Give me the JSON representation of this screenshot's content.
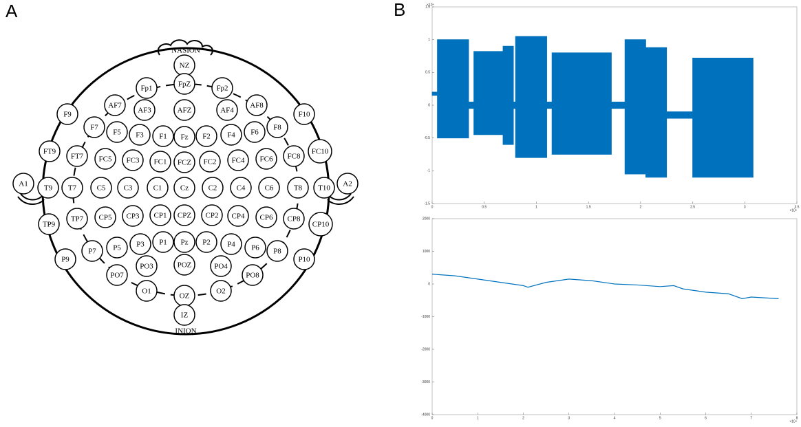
{
  "panel_labels": [
    "A",
    "B"
  ],
  "head": {
    "nasion": "NASION",
    "inion": "INION",
    "electrodes": [
      "NZ",
      "Fp1",
      "FpZ",
      "Fp2",
      "AF7",
      "AF3",
      "AFZ",
      "AF4",
      "AF8",
      "F9",
      "F10",
      "F7",
      "F5",
      "F3",
      "F1",
      "Fz",
      "F2",
      "F4",
      "F6",
      "F8",
      "FT9",
      "FT7",
      "FC5",
      "FC3",
      "FC1",
      "FCZ",
      "FC2",
      "FC4",
      "FC6",
      "FC8",
      "FC10",
      "A1",
      "T9",
      "T7",
      "C5",
      "C3",
      "C1",
      "Cz",
      "C2",
      "C4",
      "C6",
      "T8",
      "T10",
      "A2",
      "TP9",
      "TP7",
      "CP5",
      "CP3",
      "CP1",
      "CPZ",
      "CP2",
      "CP4",
      "CP6",
      "CP8",
      "CP10",
      "P9",
      "P7",
      "P5",
      "P3",
      "P1",
      "Pz",
      "P2",
      "P4",
      "P6",
      "P8",
      "P10",
      "PO7",
      "PO3",
      "POZ",
      "PO4",
      "PO8",
      "O1",
      "OZ",
      "O2",
      "IZ"
    ]
  },
  "chart_data": [
    {
      "type": "band",
      "color": "#0072bd",
      "x": [
        0,
        0.05,
        0.05,
        0.35,
        0.35,
        0.4,
        0.4,
        0.68,
        0.68,
        0.78,
        0.78,
        0.8,
        0.8,
        1.1,
        1.1,
        1.15,
        1.15,
        1.72,
        1.72,
        1.85,
        1.85,
        2.05,
        2.05,
        2.25,
        2.25,
        2.5,
        2.5,
        3.08,
        3.08
      ],
      "upper": [
        0.2,
        0.2,
        1.0,
        1.0,
        0.05,
        0.05,
        0.82,
        0.82,
        0.9,
        0.9,
        0.05,
        0.05,
        1.05,
        1.05,
        0.05,
        0.05,
        0.8,
        0.8,
        0.05,
        0.05,
        1.0,
        1.0,
        0.88,
        0.88,
        -0.1,
        -0.1,
        0.72,
        0.72,
        -0.15
      ],
      "lower": [
        0.15,
        0.15,
        -0.5,
        -0.5,
        -0.05,
        -0.05,
        -0.45,
        -0.45,
        -0.6,
        -0.6,
        -0.05,
        -0.05,
        -0.8,
        -0.8,
        -0.05,
        -0.05,
        -0.75,
        -0.75,
        -0.05,
        -0.05,
        -1.05,
        -1.05,
        -1.1,
        -1.1,
        -0.2,
        -0.2,
        -1.1,
        -1.1,
        -0.2
      ],
      "xlim": [
        0,
        3.5
      ],
      "xticks": [
        0,
        0.5,
        1,
        1.5,
        2,
        2.5,
        3,
        3.5
      ],
      "x_exponent": "×10⁶",
      "ylim": [
        -1.5,
        1.5
      ],
      "yticks": [
        -1.5,
        -1,
        -0.5,
        0,
        0.5,
        1,
        1.5
      ],
      "y_exponent": "×10⁴"
    },
    {
      "type": "line",
      "color": "#0072bd",
      "x": [
        0,
        0.5,
        1,
        1.5,
        2,
        2.1,
        2.5,
        3,
        3.5,
        4,
        4.5,
        5,
        5.3,
        5.5,
        6,
        6.5,
        6.8,
        7,
        7.6
      ],
      "values": [
        300,
        250,
        150,
        50,
        -50,
        -100,
        50,
        150,
        100,
        0,
        -30,
        -80,
        -50,
        -150,
        -250,
        -300,
        -450,
        -400,
        -450
      ],
      "xlim": [
        0,
        8
      ],
      "xticks": [
        0,
        1,
        2,
        3,
        4,
        5,
        6,
        7,
        8
      ],
      "x_exponent": "×10⁴",
      "ylim": [
        -4000,
        2000
      ],
      "yticks": [
        -4000,
        -3000,
        -2000,
        -1000,
        0,
        1000,
        2000
      ]
    }
  ]
}
